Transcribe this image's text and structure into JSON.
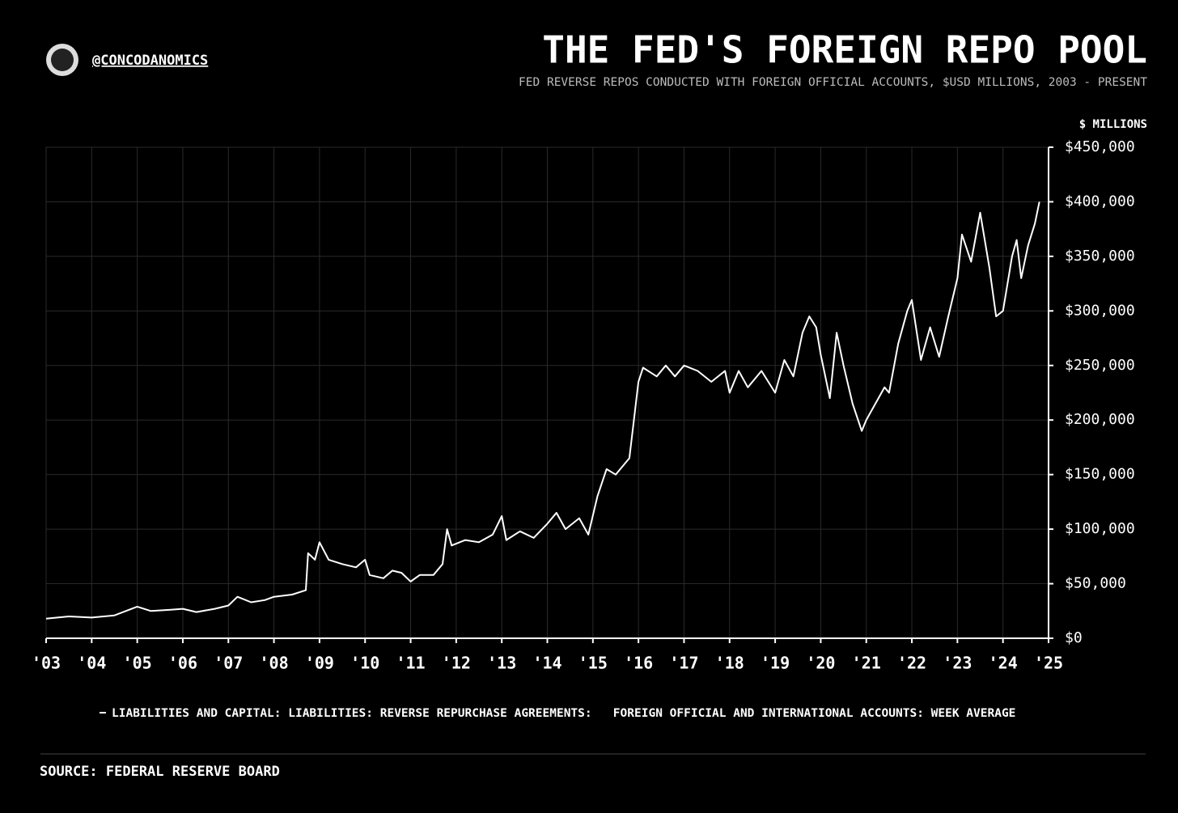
{
  "chart_data": {
    "type": "line",
    "handle": "@CONCODANOMICS",
    "title": "THE FED'S FOREIGN REPO POOL",
    "subtitle": "FED REVERSE REPOS CONDUCTED WITH FOREIGN OFFICIAL ACCOUNTS, $USD MILLIONS, 2003 - PRESENT",
    "y_axis_label": "$ MILLIONS",
    "source": "SOURCE: FEDERAL RESERVE BOARD",
    "grid": true,
    "xlim": [
      2003,
      2025
    ],
    "xticks": [
      {
        "value": 2003,
        "label": "'03"
      },
      {
        "value": 2004,
        "label": "'04"
      },
      {
        "value": 2005,
        "label": "'05"
      },
      {
        "value": 2006,
        "label": "'06"
      },
      {
        "value": 2007,
        "label": "'07"
      },
      {
        "value": 2008,
        "label": "'08"
      },
      {
        "value": 2009,
        "label": "'09"
      },
      {
        "value": 2010,
        "label": "'10"
      },
      {
        "value": 2011,
        "label": "'11"
      },
      {
        "value": 2012,
        "label": "'12"
      },
      {
        "value": 2013,
        "label": "'13"
      },
      {
        "value": 2014,
        "label": "'14"
      },
      {
        "value": 2015,
        "label": "'15"
      },
      {
        "value": 2016,
        "label": "'16"
      },
      {
        "value": 2017,
        "label": "'17"
      },
      {
        "value": 2018,
        "label": "'18"
      },
      {
        "value": 2019,
        "label": "'19"
      },
      {
        "value": 2020,
        "label": "'20"
      },
      {
        "value": 2021,
        "label": "'21"
      },
      {
        "value": 2022,
        "label": "'22"
      },
      {
        "value": 2023,
        "label": "'23"
      },
      {
        "value": 2024,
        "label": "'24"
      },
      {
        "value": 2025,
        "label": "'25"
      }
    ],
    "ylim": [
      0,
      450000
    ],
    "yticks": [
      {
        "value": 0,
        "label": "$0"
      },
      {
        "value": 50000,
        "label": "$50,000"
      },
      {
        "value": 100000,
        "label": "$100,000"
      },
      {
        "value": 150000,
        "label": "$150,000"
      },
      {
        "value": 200000,
        "label": "$200,000"
      },
      {
        "value": 250000,
        "label": "$250,000"
      },
      {
        "value": 300000,
        "label": "$300,000"
      },
      {
        "value": 350000,
        "label": "$350,000"
      },
      {
        "value": 400000,
        "label": "$400,000"
      },
      {
        "value": 450000,
        "label": "$450,000"
      }
    ],
    "x": [
      2003.0,
      2003.5,
      2004.0,
      2004.5,
      2005.0,
      2005.3,
      2005.7,
      2006.0,
      2006.3,
      2006.7,
      2007.0,
      2007.2,
      2007.5,
      2007.8,
      2008.0,
      2008.4,
      2008.7,
      2008.75,
      2008.9,
      2009.0,
      2009.2,
      2009.5,
      2009.8,
      2010.0,
      2010.1,
      2010.4,
      2010.6,
      2010.8,
      2011.0,
      2011.2,
      2011.5,
      2011.7,
      2011.8,
      2011.9,
      2012.2,
      2012.5,
      2012.8,
      2013.0,
      2013.1,
      2013.4,
      2013.7,
      2014.0,
      2014.2,
      2014.4,
      2014.7,
      2014.9,
      2015.1,
      2015.3,
      2015.5,
      2015.8,
      2015.9,
      2016.0,
      2016.1,
      2016.4,
      2016.6,
      2016.8,
      2017.0,
      2017.3,
      2017.6,
      2017.9,
      2018.0,
      2018.2,
      2018.4,
      2018.7,
      2019.0,
      2019.2,
      2019.4,
      2019.6,
      2019.75,
      2019.9,
      2020.0,
      2020.2,
      2020.35,
      2020.5,
      2020.7,
      2020.9,
      2021.0,
      2021.2,
      2021.4,
      2021.5,
      2021.7,
      2021.9,
      2022.0,
      2022.2,
      2022.4,
      2022.6,
      2022.8,
      2023.0,
      2023.1,
      2023.3,
      2023.5,
      2023.7,
      2023.85,
      2024.0,
      2024.2,
      2024.3,
      2024.4,
      2024.55,
      2024.7,
      2024.8
    ],
    "series": [
      {
        "name": "LIABILITIES AND CAPITAL: LIABILITIES: REVERSE REPURCHASE AGREEMENTS:   FOREIGN OFFICIAL AND INTERNATIONAL ACCOUNTS: WEEK AVERAGE",
        "color": "#ffffff",
        "values": [
          18000,
          20000,
          19000,
          21000,
          29000,
          25000,
          26000,
          27000,
          24000,
          27000,
          30000,
          38000,
          33000,
          35000,
          38000,
          40000,
          44000,
          78000,
          72000,
          88000,
          72000,
          68000,
          65000,
          72000,
          58000,
          55000,
          62000,
          60000,
          52000,
          58000,
          58000,
          68000,
          100000,
          85000,
          90000,
          88000,
          95000,
          112000,
          90000,
          98000,
          92000,
          105000,
          115000,
          100000,
          110000,
          95000,
          130000,
          155000,
          150000,
          165000,
          200000,
          235000,
          248000,
          240000,
          250000,
          240000,
          250000,
          245000,
          235000,
          245000,
          225000,
          245000,
          230000,
          245000,
          225000,
          255000,
          240000,
          280000,
          295000,
          285000,
          260000,
          220000,
          280000,
          250000,
          215000,
          190000,
          200000,
          215000,
          230000,
          225000,
          270000,
          300000,
          310000,
          255000,
          285000,
          258000,
          295000,
          330000,
          370000,
          345000,
          390000,
          340000,
          295000,
          300000,
          350000,
          365000,
          330000,
          360000,
          380000,
          400000
        ]
      }
    ]
  }
}
